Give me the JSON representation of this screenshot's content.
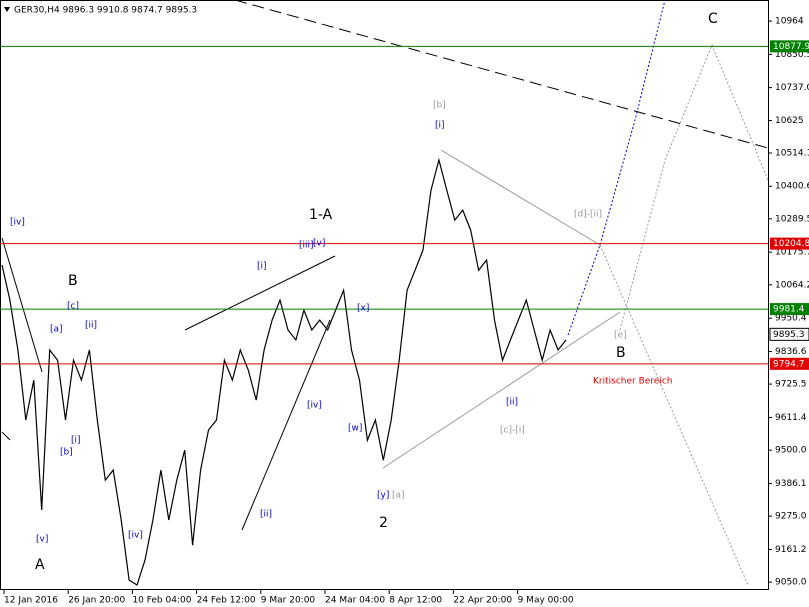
{
  "chart_data": {
    "type": "line",
    "title": "GER30,H4  9896.3 9910.8 9874.7 9895.3",
    "color": "#000000",
    "values": [
      10132,
      10012,
      9842,
      9603,
      9739,
      9296,
      9842,
      9807,
      9603,
      9807,
      9739,
      9842,
      9603,
      9398,
      9432,
      9262,
      9057,
      9040,
      9125,
      9262,
      9432,
      9262,
      9398,
      9500,
      9176,
      9432,
      9569,
      9603,
      9807,
      9739,
      9842,
      9773,
      9671,
      9842,
      9944,
      10012,
      9910,
      9876,
      9978,
      9910,
      9944,
      9910,
      9978,
      10046,
      9842,
      9739,
      9534,
      9603,
      9466,
      9603,
      9807,
      10046,
      10114,
      10183,
      10387,
      10490,
      10387,
      10285,
      10319,
      10251,
      10114,
      10149,
      9944,
      9807,
      9876,
      9944,
      10012,
      9910,
      9807,
      9910,
      9842,
      9876
    ],
    "x_tick_labels": [
      "12 Jan 2016",
      "26 Jan 20:00",
      "10 Feb 04:00",
      "24 Feb 12:00",
      "9 Mar 20:00",
      "24 Mar 04:00",
      "8 Apr 12:00",
      "22 Apr 20:00",
      "9 May 00:00"
    ],
    "ylim": [
      9023,
      11036
    ],
    "yticks": [
      10964,
      10850.5,
      {
        "value": 10737,
        "label": "10737.0"
      },
      10625,
      10514.1,
      10400.6,
      10289.5,
      10175.7,
      10064.2,
      9950.4,
      9836.6,
      9725.5,
      9611.4,
      {
        "value": 9500,
        "label": "9500.0"
      },
      9386.1,
      {
        "value": 9275,
        "label": "9275.0"
      },
      9161.2,
      {
        "value": 9050,
        "label": "9050.0"
      }
    ],
    "levels": [
      {
        "value": 10877.9,
        "color": "#008000"
      },
      {
        "value": 10204.8,
        "color": "#e00000"
      },
      {
        "value": 9981.4,
        "color": "#008000"
      },
      {
        "value": 9794.7,
        "color": "#e00000"
      }
    ],
    "last": 9895.3,
    "annotations": [
      {
        "text": "[iv]",
        "color": "#0000cc"
      },
      {
        "text": "B",
        "color": "#000000"
      },
      {
        "text": "[c]",
        "color": "#0000cc"
      },
      {
        "text": "[a]",
        "color": "#0000cc"
      },
      {
        "text": "[ii]",
        "color": "#0000cc"
      },
      {
        "text": "[i]",
        "color": "#0000cc"
      },
      {
        "text": "[b]",
        "color": "#0000cc"
      },
      {
        "text": "[v]",
        "color": "#0000cc"
      },
      {
        "text": "A",
        "color": "#000000"
      },
      {
        "text": "[iv]",
        "color": "#0000cc"
      },
      {
        "text": "[ii]",
        "color": "#0000cc"
      },
      {
        "text": "[i]",
        "color": "#0000cc"
      },
      {
        "text": "[iii]",
        "color": "#0000cc"
      },
      {
        "text": "[v]",
        "color": "#0000cc"
      },
      {
        "text": "1-A",
        "color": "#000000"
      },
      {
        "text": "[iv]",
        "color": "#0000cc"
      },
      {
        "text": "[x]",
        "color": "#0000cc"
      },
      {
        "text": "[w]",
        "color": "#0000cc"
      },
      {
        "text": "[y]",
        "color": "#0000cc"
      },
      {
        "text": "[a]",
        "color": "#999999"
      },
      {
        "text": "2",
        "color": "#000000"
      },
      {
        "text": "[b]",
        "color": "#999999"
      },
      {
        "text": "[i]",
        "color": "#0000cc"
      },
      {
        "text": "[d]-[ii]",
        "color": "#999999"
      },
      {
        "text": "[e]",
        "color": "#999999"
      },
      {
        "text": "B",
        "color": "#000000"
      },
      {
        "text": "Kritischer Bereich",
        "color": "#e00000"
      },
      {
        "text": "[ii]",
        "color": "#0000cc"
      },
      {
        "text": "[c]-[i]",
        "color": "#999999"
      },
      {
        "text": "C",
        "color": "#000000"
      }
    ]
  }
}
